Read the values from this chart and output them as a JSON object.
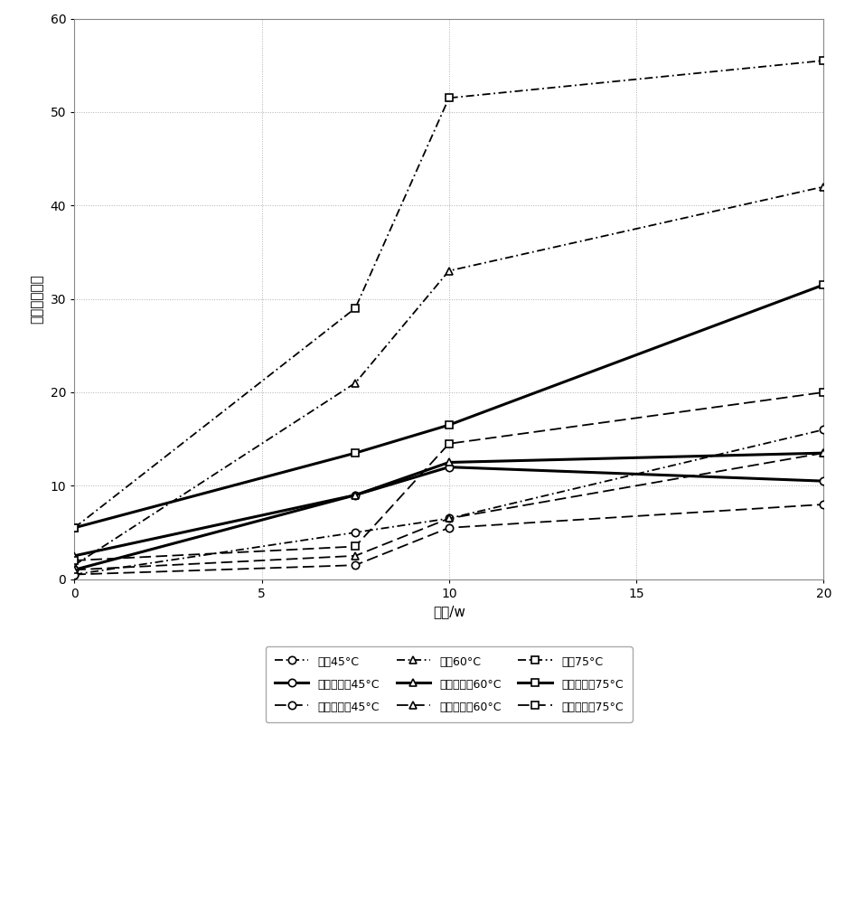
{
  "title": "",
  "xlabel": "功率/w",
  "ylabel": "相对蒸发速率",
  "xlim": [
    0,
    20
  ],
  "ylim": [
    0,
    60
  ],
  "xticks": [
    0,
    5,
    10,
    15,
    20
  ],
  "yticks": [
    0,
    10,
    20,
    30,
    40,
    50,
    60
  ],
  "series": [
    {
      "label": "淡汴45°C",
      "x": [
        0,
        7.5,
        10,
        20
      ],
      "y": [
        0.5,
        5.0,
        6.5,
        16.0
      ],
      "group": "freshwater",
      "marker": "o"
    },
    {
      "label": "淡汴60°C",
      "x": [
        0,
        7.5,
        10,
        20
      ],
      "y": [
        1.5,
        21.0,
        33.0,
        42.0
      ],
      "group": "freshwater",
      "marker": "^"
    },
    {
      "label": "淡汴75°C",
      "x": [
        0,
        7.5,
        10,
        20
      ],
      "y": [
        5.5,
        29.0,
        51.5,
        55.5
      ],
      "group": "freshwater",
      "marker": "s"
    },
    {
      "label": "低浓度幵汇45°C",
      "x": [
        0,
        7.5,
        10,
        20
      ],
      "y": [
        1.0,
        9.0,
        12.0,
        10.5
      ],
      "group": "lowbrine",
      "marker": "o"
    },
    {
      "label": "低浓度幵汇60°C",
      "x": [
        0,
        7.5,
        10,
        20
      ],
      "y": [
        2.5,
        9.0,
        12.5,
        13.5
      ],
      "group": "lowbrine",
      "marker": "^"
    },
    {
      "label": "低浓度幵汇75°C",
      "x": [
        0,
        7.5,
        10,
        20
      ],
      "y": [
        5.5,
        13.5,
        16.5,
        31.5
      ],
      "group": "lowbrine",
      "marker": "s"
    },
    {
      "label": "高浓度幵汇45°C",
      "x": [
        0,
        7.5,
        10,
        20
      ],
      "y": [
        0.5,
        1.5,
        5.5,
        8.0
      ],
      "group": "highbrine",
      "marker": "o"
    },
    {
      "label": "高浓度幵汇60°C",
      "x": [
        0,
        7.5,
        10,
        20
      ],
      "y": [
        1.0,
        2.5,
        6.5,
        13.5
      ],
      "group": "highbrine",
      "marker": "^"
    },
    {
      "label": "高浓度幵汇75°C",
      "x": [
        0,
        7.5,
        10,
        20
      ],
      "y": [
        2.0,
        3.5,
        14.5,
        20.0
      ],
      "group": "highbrine",
      "marker": "s"
    }
  ],
  "legend_labels": [
    "淡汴45°C",
    "淡汴60°C",
    "淡汴75°C",
    "低浓度幵汇45°C",
    "低浓度幵汇60°C",
    "低浓度幵汇75°C",
    "高浓度幵汇45°C",
    "高浓度幵汇60°C",
    "高浓度幵汇75°C"
  ],
  "background_color": "#ffffff",
  "grid_color": "#b0b0b0"
}
